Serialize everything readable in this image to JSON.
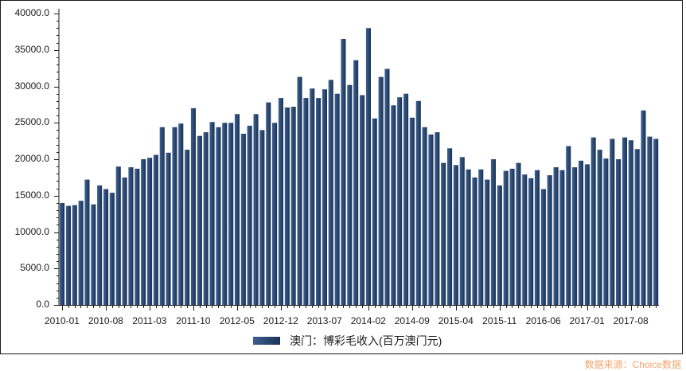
{
  "chart_data": {
    "type": "bar",
    "title": "",
    "xlabel": "",
    "ylabel": "",
    "ylim": [
      0,
      40000
    ],
    "yticks": [
      "0.0",
      "5000.0",
      "10000.0",
      "15000.0",
      "20000.0",
      "25000.0",
      "30000.0",
      "35000.0",
      "40000.0"
    ],
    "xtick_labels": [
      "2010-01",
      "2010-08",
      "2011-03",
      "2011-10",
      "2012-05",
      "2012-12",
      "2013-07",
      "2014-02",
      "2014-09",
      "2015-04",
      "2015-11",
      "2016-06",
      "2017-01",
      "2017-08"
    ],
    "grid": false,
    "legend_position": "bottom",
    "categories": [
      "2010-01",
      "2010-02",
      "2010-03",
      "2010-04",
      "2010-05",
      "2010-06",
      "2010-07",
      "2010-08",
      "2010-09",
      "2010-10",
      "2010-11",
      "2010-12",
      "2011-01",
      "2011-02",
      "2011-03",
      "2011-04",
      "2011-05",
      "2011-06",
      "2011-07",
      "2011-08",
      "2011-09",
      "2011-10",
      "2011-11",
      "2011-12",
      "2012-01",
      "2012-02",
      "2012-03",
      "2012-04",
      "2012-05",
      "2012-06",
      "2012-07",
      "2012-08",
      "2012-09",
      "2012-10",
      "2012-11",
      "2012-12",
      "2013-01",
      "2013-02",
      "2013-03",
      "2013-04",
      "2013-05",
      "2013-06",
      "2013-07",
      "2013-08",
      "2013-09",
      "2013-10",
      "2013-11",
      "2013-12",
      "2014-01",
      "2014-02",
      "2014-03",
      "2014-04",
      "2014-05",
      "2014-06",
      "2014-07",
      "2014-08",
      "2014-09",
      "2014-10",
      "2014-11",
      "2014-12",
      "2015-01",
      "2015-02",
      "2015-03",
      "2015-04",
      "2015-05",
      "2015-06",
      "2015-07",
      "2015-08",
      "2015-09",
      "2015-10",
      "2015-11",
      "2015-12",
      "2016-01",
      "2016-02",
      "2016-03",
      "2016-04",
      "2016-05",
      "2016-06",
      "2016-07",
      "2016-08",
      "2016-09",
      "2016-10",
      "2016-11",
      "2016-12",
      "2017-01",
      "2017-02",
      "2017-03",
      "2017-04",
      "2017-05",
      "2017-06",
      "2017-07",
      "2017-08",
      "2017-09",
      "2017-10",
      "2017-11",
      "2017-12"
    ],
    "series": [
      {
        "name": "澳门：博彩毛收入(百万澳门元)",
        "color": "#2b4a75",
        "values": [
          14000,
          13600,
          13700,
          14300,
          17200,
          13800,
          16400,
          15900,
          15400,
          19000,
          17500,
          18900,
          18700,
          20000,
          20200,
          20600,
          24400,
          20900,
          24400,
          24900,
          21300,
          27000,
          23200,
          23700,
          25100,
          24400,
          25000,
          25000,
          26200,
          23500,
          24600,
          26200,
          24000,
          27800,
          25000,
          28400,
          27100,
          27200,
          31300,
          28400,
          29700,
          28400,
          29600,
          30900,
          29000,
          36500,
          30200,
          33600,
          28800,
          38000,
          25600,
          31300,
          32400,
          27400,
          28500,
          29000,
          25700,
          28000,
          24400,
          23400,
          23700,
          19500,
          21500,
          19200,
          20300,
          18600,
          17500,
          18600,
          17200,
          20000,
          16400,
          18400,
          18700,
          19500,
          17900,
          17400,
          18500,
          15900,
          17800,
          18900,
          18500,
          21800,
          18900,
          19800,
          19300,
          23000,
          21300,
          20100,
          22800,
          20000,
          23000,
          22600,
          21400,
          26700,
          23100,
          22800
        ]
      }
    ]
  },
  "legend": {
    "label": "澳门：博彩毛收入(百万澳门元)"
  },
  "source_note": "数据来源：Choice数据"
}
